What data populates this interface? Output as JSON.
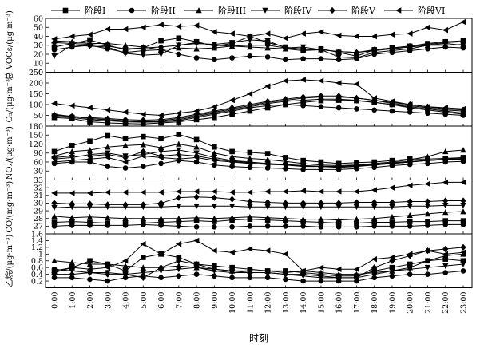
{
  "chart_data": {
    "type": "line",
    "xlabel": "时刻",
    "categories": [
      "0:00",
      "1:00",
      "2:00",
      "3:00",
      "4:00",
      "5:00",
      "6:00",
      "7:00",
      "8:00",
      "9:00",
      "10:00",
      "11:00",
      "12:00",
      "13:00",
      "14:00",
      "15:00",
      "16:00",
      "17:00",
      "18:00",
      "19:00",
      "20:00",
      "21:00",
      "22:00",
      "23:00"
    ],
    "legend": [
      "阶段I",
      "阶段II",
      "阶段III",
      "阶段IV",
      "阶段V",
      "阶段VI"
    ],
    "legend_position": "top",
    "markers": [
      "square",
      "circle",
      "triangle-up",
      "triangle-down",
      "diamond",
      "triangle-left"
    ],
    "color": "#000000",
    "panels": [
      {
        "ylabel": "总 VOCs/(μg·m⁻³)",
        "ylim": [
          0,
          60
        ],
        "yticks": [
          0,
          10,
          20,
          30,
          40,
          50,
          60
        ],
        "series": [
          {
            "name": "阶段I",
            "values": [
              28,
              32,
              36,
              30,
              25,
              27,
              35,
              38,
              34,
              29,
              32,
              40,
              33,
              28,
              25,
              26,
              22,
              18,
              25,
              27,
              29,
              32,
              34,
              35
            ]
          },
          {
            "name": "阶段II",
            "values": [
              25,
              28,
              30,
              26,
              22,
              24,
              25,
              20,
              16,
              14,
              16,
              18,
              17,
              14,
              15,
              15,
              14,
              15,
              20,
              22,
              24,
              26,
              28,
              27
            ]
          },
          {
            "name": "阶段III",
            "values": [
              35,
              34,
              32,
              32,
              30,
              28,
              25,
              27,
              26,
              27,
              29,
              28,
              27,
              26,
              24,
              25,
              23,
              22,
              24,
              26,
              28,
              30,
              30,
              31
            ]
          },
          {
            "name": "阶段IV",
            "values": [
              18,
              30,
              29,
              28,
              21,
              19,
              20,
              30,
              32,
              31,
              33,
              36,
              35,
              27,
              28,
              25,
              17,
              16,
              22,
              24,
              26,
              30,
              32,
              30
            ]
          },
          {
            "name": "阶段V",
            "values": [
              33,
              32,
              31,
              29,
              26,
              27,
              28,
              30,
              33,
              30,
              29,
              30,
              30,
              27,
              26,
              25,
              23,
              22,
              25,
              27,
              29,
              31,
              33,
              34
            ]
          },
          {
            "name": "阶段VI",
            "values": [
              37,
              40,
              42,
              48,
              48,
              50,
              53,
              51,
              52,
              45,
              43,
              40,
              43,
              38,
              43,
              45,
              41,
              40,
              40,
              42,
              43,
              50,
              47,
              56
            ]
          }
        ]
      },
      {
        "ylabel": "O₃/(μg·m⁻³)",
        "ylim": [
          0,
          250
        ],
        "yticks": [
          0,
          50,
          100,
          150,
          200,
          250
        ],
        "series": [
          {
            "name": "阶段I",
            "values": [
              40,
              35,
              20,
              15,
              12,
              10,
              15,
              20,
              30,
              40,
              55,
              70,
              85,
              100,
              110,
              118,
              120,
              118,
              110,
              100,
              85,
              75,
              65,
              55
            ]
          },
          {
            "name": "阶段II",
            "values": [
              50,
              45,
              35,
              30,
              25,
              20,
              20,
              25,
              40,
              55,
              70,
              85,
              95,
              100,
              95,
              90,
              85,
              80,
              75,
              70,
              65,
              60,
              55,
              50
            ]
          },
          {
            "name": "阶段III",
            "values": [
              55,
              45,
              35,
              30,
              25,
              20,
              25,
              35,
              50,
              65,
              80,
              95,
              110,
              120,
              130,
              135,
              135,
              130,
              120,
              105,
              95,
              85,
              75,
              70
            ]
          },
          {
            "name": "阶段IV",
            "values": [
              45,
              40,
              30,
              25,
              20,
              18,
              20,
              30,
              45,
              60,
              75,
              90,
              105,
              115,
              120,
              125,
              125,
              120,
              110,
              100,
              90,
              80,
              70,
              60
            ]
          },
          {
            "name": "阶段V",
            "values": [
              50,
              45,
              40,
              35,
              30,
              28,
              30,
              40,
              55,
              70,
              85,
              100,
              115,
              125,
              135,
              140,
              140,
              130,
              120,
              110,
              100,
              90,
              80,
              75
            ]
          },
          {
            "name": "阶段VI",
            "values": [
              105,
              95,
              85,
              75,
              65,
              55,
              50,
              60,
              70,
              90,
              120,
              150,
              185,
              210,
              215,
              210,
              200,
              195,
              130,
              115,
              100,
              90,
              85,
              80
            ]
          }
        ]
      },
      {
        "ylabel": "NOₓ/(μg·m⁻³)",
        "ylim": [
          0,
          180
        ],
        "yticks": [
          0,
          30,
          60,
          90,
          120,
          150,
          180
        ],
        "series": [
          {
            "name": "阶段I",
            "values": [
              95,
              115,
              130,
              148,
              138,
              145,
              138,
              152,
              135,
              110,
              95,
              92,
              88,
              75,
              65,
              60,
              55,
              58,
              60,
              65,
              70,
              70,
              72,
              75
            ]
          },
          {
            "name": "阶段II",
            "values": [
              55,
              60,
              60,
              45,
              40,
              45,
              55,
              65,
              60,
              50,
              45,
              42,
              40,
              38,
              35,
              35,
              35,
              38,
              42,
              48,
              52,
              55,
              60,
              62
            ]
          },
          {
            "name": "阶段III",
            "values": [
              80,
              95,
              100,
              110,
              115,
              118,
              108,
              120,
              110,
              90,
              78,
              72,
              68,
              62,
              55,
              50,
              48,
              50,
              55,
              60,
              68,
              78,
              95,
              100
            ]
          },
          {
            "name": "阶段IV",
            "values": [
              70,
              75,
              85,
              90,
              80,
              85,
              95,
              100,
              90,
              75,
              65,
              60,
              55,
              50,
              45,
              45,
              42,
              45,
              50,
              55,
              60,
              65,
              68,
              70
            ]
          },
          {
            "name": "阶段V",
            "values": [
              75,
              80,
              80,
              85,
              75,
              95,
              80,
              85,
              80,
              70,
              62,
              58,
              55,
              52,
              48,
              45,
              45,
              48,
              52,
              58,
              62,
              65,
              68,
              70
            ]
          },
          {
            "name": "阶段VI",
            "values": [
              60,
              65,
              70,
              75,
              60,
              80,
              75,
              70,
              75,
              65,
              60,
              55,
              52,
              50,
              48,
              46,
              45,
              47,
              50,
              55,
              60,
              65,
              70,
              72
            ]
          }
        ]
      },
      {
        "ylabel": "CO/(mg·m⁻³)",
        "ylim": [
          26,
          33
        ],
        "yticks": [
          26,
          27,
          28,
          29,
          30,
          31,
          32,
          33
        ],
        "series": [
          {
            "name": "阶段I",
            "values": [
              27.5,
              27.6,
              27.5,
              27.4,
              27.4,
              27.4,
              27.5,
              27.6,
              27.7,
              27.6,
              27.8,
              27.9,
              27.8,
              27.7,
              27.6,
              27.5,
              27.4,
              27.4,
              27.5,
              27.5,
              27.6,
              27.6,
              27.7,
              27.7
            ]
          },
          {
            "name": "阶段II",
            "values": [
              27.0,
              27.1,
              27.1,
              27.1,
              27.1,
              27.2,
              27.1,
              27.0,
              26.9,
              26.9,
              26.9,
              27.0,
              27.0,
              27.0,
              27.0,
              26.9,
              26.9,
              26.9,
              27.0,
              27.0,
              27.0,
              27.1,
              27.2,
              27.2
            ]
          },
          {
            "name": "阶段III",
            "values": [
              28.3,
              28.1,
              28.2,
              28.1,
              28.0,
              28.0,
              28.0,
              28.0,
              28.1,
              28.0,
              28.1,
              28.2,
              28.1,
              28.0,
              27.9,
              27.9,
              27.8,
              27.9,
              28.0,
              28.2,
              28.4,
              28.6,
              28.8,
              28.9
            ]
          },
          {
            "name": "阶段IV",
            "values": [
              29.4,
              29.5,
              29.5,
              29.5,
              29.5,
              29.5,
              29.5,
              29.6,
              29.6,
              29.6,
              29.6,
              29.5,
              29.5,
              29.5,
              29.5,
              29.5,
              29.5,
              29.5,
              29.5,
              29.5,
              29.6,
              29.6,
              29.7,
              29.7
            ]
          },
          {
            "name": "阶段V",
            "values": [
              30.0,
              29.9,
              29.9,
              29.8,
              29.8,
              29.8,
              30.0,
              30.7,
              30.8,
              30.7,
              30.5,
              30.2,
              30.1,
              30.0,
              30.0,
              30.0,
              30.0,
              30.1,
              30.1,
              30.1,
              30.2,
              30.2,
              30.3,
              30.3
            ]
          },
          {
            "name": "阶段VI",
            "values": [
              31.3,
              31.3,
              31.3,
              31.4,
              31.4,
              31.4,
              31.4,
              31.5,
              31.5,
              31.5,
              31.4,
              31.4,
              31.5,
              31.5,
              31.6,
              31.5,
              31.5,
              31.5,
              31.7,
              32.0,
              32.3,
              32.5,
              32.7,
              32.7
            ]
          }
        ]
      },
      {
        "ylabel": "乙烷/(μg·m⁻³)",
        "ylim": [
          0,
          1.6
        ],
        "yticks": [
          0,
          0.2,
          0.4,
          0.6,
          0.8,
          1.0,
          1.2,
          1.4,
          1.6
        ],
        "series": [
          {
            "name": "阶段I",
            "values": [
              0.5,
              0.6,
              0.8,
              0.7,
              0.5,
              0.9,
              1.0,
              0.9,
              0.7,
              0.65,
              0.6,
              0.55,
              0.5,
              0.5,
              0.45,
              0.4,
              0.35,
              0.35,
              0.5,
              0.6,
              0.7,
              0.8,
              0.85,
              0.8
            ]
          },
          {
            "name": "阶段II",
            "values": [
              0.3,
              0.3,
              0.25,
              0.2,
              0.3,
              0.35,
              0.3,
              0.35,
              0.4,
              0.35,
              0.3,
              0.3,
              0.3,
              0.25,
              0.2,
              0.2,
              0.2,
              0.2,
              0.3,
              0.35,
              0.4,
              0.4,
              0.45,
              0.5
            ]
          },
          {
            "name": "阶段III",
            "values": [
              0.8,
              0.75,
              0.7,
              0.7,
              0.65,
              0.6,
              0.6,
              0.65,
              0.6,
              0.55,
              0.5,
              0.5,
              0.5,
              0.45,
              0.5,
              0.45,
              0.4,
              0.4,
              0.45,
              0.5,
              0.6,
              0.8,
              0.95,
              1.0
            ]
          },
          {
            "name": "阶段IV",
            "values": [
              0.55,
              0.5,
              0.45,
              0.45,
              0.4,
              0.45,
              0.5,
              0.55,
              0.6,
              0.5,
              0.45,
              0.45,
              0.45,
              0.4,
              0.35,
              0.3,
              0.3,
              0.3,
              0.4,
              0.5,
              0.55,
              0.6,
              0.65,
              0.7
            ]
          },
          {
            "name": "阶段V",
            "values": [
              0.4,
              0.4,
              0.45,
              0.4,
              0.4,
              0.3,
              0.6,
              0.8,
              0.7,
              0.55,
              0.5,
              0.45,
              0.45,
              0.4,
              0.4,
              0.35,
              0.3,
              0.3,
              0.6,
              0.8,
              0.95,
              1.1,
              1.15,
              1.2
            ]
          },
          {
            "name": "阶段VI",
            "values": [
              0.45,
              0.6,
              0.55,
              0.6,
              0.8,
              1.3,
              1.0,
              1.3,
              1.4,
              1.1,
              1.05,
              1.15,
              1.1,
              1.0,
              0.5,
              0.6,
              0.55,
              0.55,
              0.85,
              0.9,
              1.0,
              1.1,
              1.0,
              1.05
            ]
          }
        ]
      }
    ]
  }
}
